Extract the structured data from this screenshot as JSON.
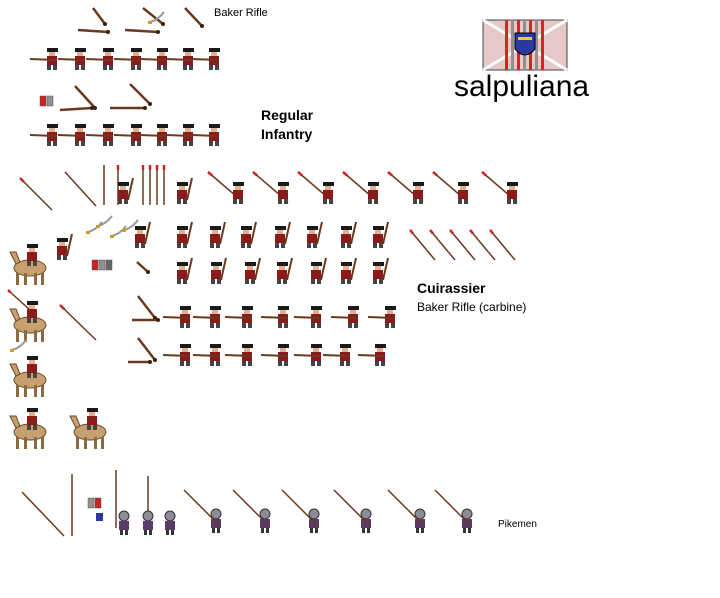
{
  "title": "salpuliana",
  "labels": {
    "baker_rifle": "Baker Rifle",
    "regular": "Regular",
    "infantry": "Infantry",
    "cuirassier": "Cuirassier",
    "carbine": "Baker Rifle (carbine)",
    "pikemen": "Pikemen"
  },
  "colors": {
    "coat_red": "#8b1a1a",
    "hat_black": "#1a1a1a",
    "musket_brown": "#6b3a1e",
    "pike_tip_red": "#cc2222",
    "horse_tan": "#c8a070",
    "armor_grey": "#8c8c96",
    "pike_purple": "#5a3a6a",
    "flag_pink": "#e6c8c8",
    "flag_red": "#dd2222",
    "flag_grey": "#909090",
    "shield_blue": "#2a3aa0"
  },
  "icons": {
    "flag": "flag-icon",
    "musket": "musket-icon",
    "pike": "pike-icon",
    "saber": "saber-icon",
    "soldier": "soldier-sprite",
    "horse": "horse-sprite"
  }
}
